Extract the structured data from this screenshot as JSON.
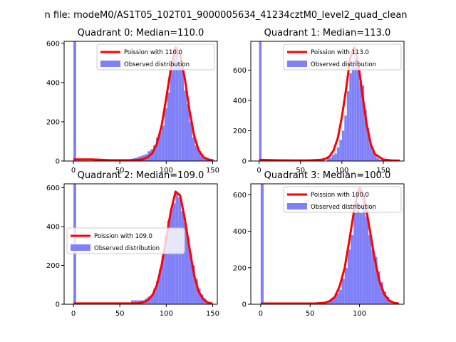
{
  "figure": {
    "suptitle": "n file: modeM0/AS1T05_102T01_9000005634_41234cztM0_level2_quad_clean"
  },
  "colors": {
    "hist": "#8080f8",
    "fit": "#ff0000",
    "axis": "#000000"
  },
  "chart_data": [
    {
      "type": "bar",
      "title": "Quadrant 0: Median=110.0",
      "xlim": [
        -10,
        155
      ],
      "ylim": [
        0,
        610
      ],
      "xticks": [
        0,
        50,
        100,
        150
      ],
      "yticks": [
        0,
        200,
        400,
        600
      ],
      "legend": {
        "loc": "top-right",
        "fit_label": "Poission with 110.0",
        "hist_label": "Observed distribution"
      },
      "bin_width": 3,
      "hist": [
        [
          0,
          610
        ],
        [
          62,
          12
        ],
        [
          65,
          15
        ],
        [
          68,
          20
        ],
        [
          71,
          25
        ],
        [
          74,
          30
        ],
        [
          77,
          35
        ],
        [
          80,
          50
        ],
        [
          83,
          60
        ],
        [
          86,
          80
        ],
        [
          89,
          120
        ],
        [
          92,
          150
        ],
        [
          95,
          180
        ],
        [
          98,
          270
        ],
        [
          101,
          350
        ],
        [
          104,
          460
        ],
        [
          107,
          540
        ],
        [
          110,
          580
        ],
        [
          113,
          500
        ],
        [
          116,
          470
        ],
        [
          119,
          360
        ],
        [
          122,
          290
        ],
        [
          125,
          200
        ],
        [
          128,
          120
        ],
        [
          131,
          80
        ],
        [
          134,
          50
        ],
        [
          137,
          35
        ],
        [
          140,
          20
        ],
        [
          143,
          15
        ],
        [
          146,
          10
        ],
        [
          149,
          8
        ]
      ],
      "fit": {
        "x": [
          0,
          20,
          40,
          60,
          70,
          75,
          80,
          85,
          90,
          95,
          100,
          105,
          110,
          115,
          120,
          125,
          130,
          135,
          140,
          145,
          150
        ],
        "y": [
          8,
          8,
          4,
          4,
          6,
          9,
          20,
          40,
          90,
          180,
          320,
          470,
          580,
          540,
          420,
          260,
          130,
          55,
          20,
          8,
          4
        ]
      }
    },
    {
      "type": "bar",
      "title": "Quadrant 1: Median=113.0",
      "xlim": [
        -10,
        175
      ],
      "ylim": [
        0,
        790
      ],
      "xticks": [
        0,
        50,
        100,
        150
      ],
      "yticks": [
        0,
        200,
        400,
        600
      ],
      "legend": {
        "loc": "top-right",
        "fit_label": "Poission with 113.0",
        "hist_label": "Observed distribution"
      },
      "bin_width": 3,
      "hist": [
        [
          0,
          790
        ],
        [
          70,
          10
        ],
        [
          76,
          15
        ],
        [
          82,
          25
        ],
        [
          85,
          20
        ],
        [
          88,
          40
        ],
        [
          91,
          50
        ],
        [
          94,
          90
        ],
        [
          97,
          140
        ],
        [
          100,
          200
        ],
        [
          103,
          300
        ],
        [
          106,
          460
        ],
        [
          109,
          580
        ],
        [
          112,
          660
        ],
        [
          115,
          680
        ],
        [
          118,
          620
        ],
        [
          121,
          520
        ],
        [
          124,
          500
        ],
        [
          127,
          340
        ],
        [
          130,
          220
        ],
        [
          133,
          120
        ],
        [
          136,
          70
        ],
        [
          139,
          40
        ],
        [
          142,
          20
        ],
        [
          145,
          10
        ],
        [
          148,
          8
        ]
      ],
      "fit": {
        "x": [
          0,
          20,
          40,
          60,
          75,
          80,
          85,
          90,
          95,
          100,
          105,
          110,
          115,
          120,
          125,
          130,
          135,
          140,
          150,
          160,
          170
        ],
        "y": [
          8,
          5,
          4,
          4,
          8,
          15,
          30,
          70,
          150,
          290,
          470,
          680,
          750,
          640,
          430,
          240,
          110,
          45,
          10,
          4,
          3
        ]
      }
    },
    {
      "type": "bar",
      "title": "Quadrant 2: Median=109.0",
      "xlim": [
        -10,
        155
      ],
      "ylim": [
        0,
        620
      ],
      "xticks": [
        0,
        50,
        100,
        150
      ],
      "yticks": [
        0,
        200,
        400,
        600
      ],
      "legend": {
        "loc": "center-left",
        "fit_label": "Poission with 109.0",
        "hist_label": "Observed distribution"
      },
      "bin_width": 3,
      "hist": [
        [
          0,
          620
        ],
        [
          62,
          20
        ],
        [
          65,
          20
        ],
        [
          68,
          20
        ],
        [
          71,
          20
        ],
        [
          74,
          20
        ],
        [
          77,
          30
        ],
        [
          80,
          40
        ],
        [
          83,
          50
        ],
        [
          86,
          80
        ],
        [
          89,
          120
        ],
        [
          92,
          180
        ],
        [
          95,
          250
        ],
        [
          98,
          350
        ],
        [
          101,
          430
        ],
        [
          104,
          490
        ],
        [
          107,
          520
        ],
        [
          110,
          570
        ],
        [
          113,
          550
        ],
        [
          116,
          480
        ],
        [
          119,
          420
        ],
        [
          122,
          340
        ],
        [
          125,
          260
        ],
        [
          128,
          200
        ],
        [
          131,
          130
        ],
        [
          134,
          80
        ],
        [
          137,
          50
        ],
        [
          140,
          30
        ],
        [
          143,
          15
        ],
        [
          146,
          8
        ]
      ],
      "fit": {
        "x": [
          0,
          20,
          40,
          60,
          70,
          75,
          80,
          85,
          90,
          95,
          100,
          105,
          110,
          115,
          120,
          125,
          130,
          135,
          140,
          145,
          150
        ],
        "y": [
          4,
          4,
          4,
          4,
          5,
          10,
          20,
          45,
          100,
          200,
          340,
          480,
          580,
          560,
          440,
          290,
          150,
          65,
          25,
          8,
          3
        ]
      }
    },
    {
      "type": "bar",
      "title": "Quadrant 3: Median=100.0",
      "xlim": [
        -10,
        145
      ],
      "ylim": [
        0,
        660
      ],
      "xticks": [
        0,
        50,
        100
      ],
      "yticks": [
        0,
        200,
        400,
        600
      ],
      "legend": {
        "loc": "top-right",
        "fit_label": "Poission with 100.0",
        "hist_label": "Observed distribution"
      },
      "bin_width": 3,
      "hist": [
        [
          0,
          660
        ],
        [
          60,
          10
        ],
        [
          64,
          15
        ],
        [
          67,
          20
        ],
        [
          70,
          30
        ],
        [
          73,
          40
        ],
        [
          76,
          60
        ],
        [
          79,
          80
        ],
        [
          82,
          140
        ],
        [
          85,
          200
        ],
        [
          88,
          300
        ],
        [
          91,
          380
        ],
        [
          94,
          500
        ],
        [
          97,
          560
        ],
        [
          100,
          500
        ],
        [
          103,
          610
        ],
        [
          106,
          480
        ],
        [
          109,
          380
        ],
        [
          112,
          300
        ],
        [
          115,
          260
        ],
        [
          118,
          180
        ],
        [
          121,
          120
        ],
        [
          124,
          70
        ],
        [
          127,
          40
        ],
        [
          130,
          20
        ],
        [
          133,
          10
        ]
      ],
      "fit": {
        "x": [
          0,
          20,
          40,
          55,
          65,
          70,
          75,
          80,
          85,
          90,
          95,
          100,
          105,
          110,
          115,
          120,
          125,
          130,
          135,
          140
        ],
        "y": [
          4,
          4,
          4,
          4,
          8,
          18,
          40,
          100,
          200,
          360,
          530,
          640,
          580,
          420,
          260,
          130,
          55,
          20,
          8,
          3
        ]
      }
    }
  ]
}
